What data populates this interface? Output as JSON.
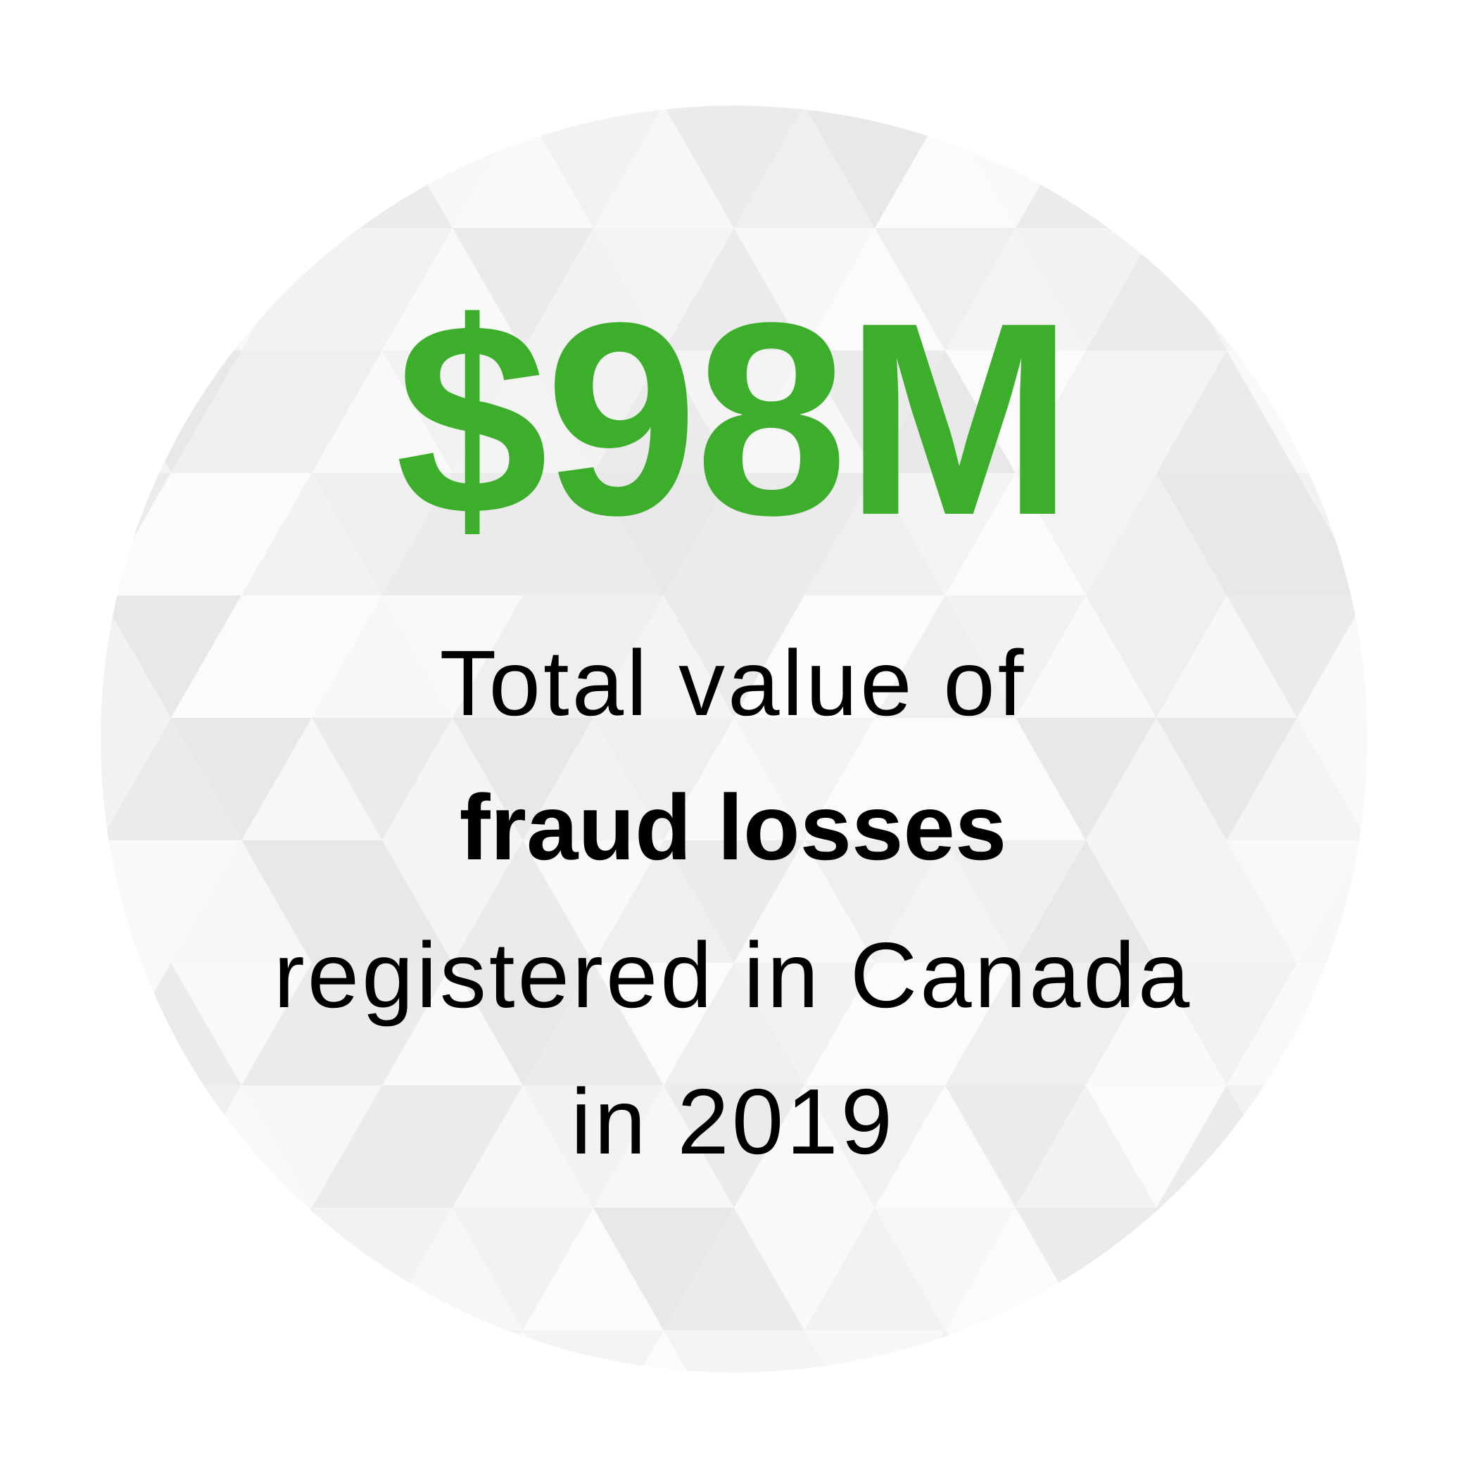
{
  "stat": {
    "value": "$98M",
    "color": "#3dae2b"
  },
  "description": {
    "line1": "Total value of",
    "line2": "fraud losses",
    "line3": "registered in Canada",
    "line4": "in 2019"
  },
  "background": {
    "pattern": "gray-triangle-mosaic-circle"
  }
}
